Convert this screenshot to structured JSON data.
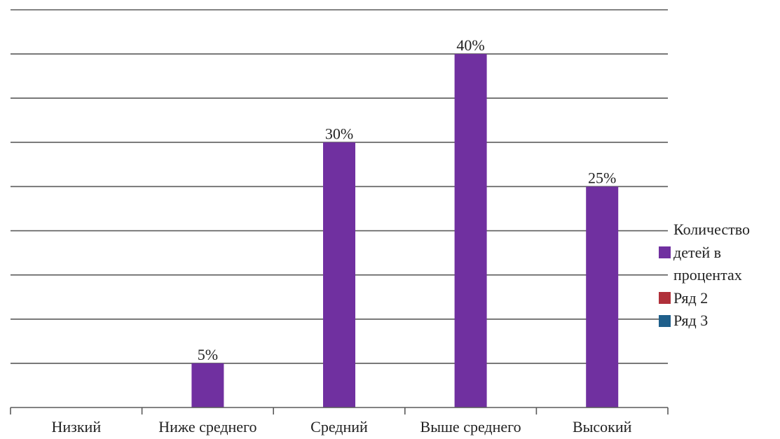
{
  "chart_data": {
    "type": "bar",
    "categories": [
      "Низкий",
      "Ниже среднего",
      "Средний",
      "Выше среднего",
      "Высокий"
    ],
    "series": [
      {
        "name": "Количество детей в процентах",
        "values": [
          0,
          5,
          30,
          40,
          25
        ],
        "labels": [
          "",
          "5%",
          "30%",
          "40%",
          "25%"
        ],
        "color": "#7030a0"
      },
      {
        "name": "Ряд 2",
        "values": [
          0,
          0,
          0,
          0,
          0
        ],
        "color": "#b0303a"
      },
      {
        "name": "Ряд 3",
        "values": [
          0,
          0,
          0,
          0,
          0
        ],
        "color": "#1f5f8b"
      }
    ],
    "ylim": [
      0,
      45
    ],
    "ytick_step": 5,
    "grid": true,
    "legend_position": "right",
    "title": "",
    "xlabel": "",
    "ylabel": ""
  },
  "legend": {
    "items": [
      {
        "label": "Количество детей в процентах",
        "color": "#7030a0"
      },
      {
        "label": "Ряд 2",
        "color": "#b0303a"
      },
      {
        "label": "Ряд 3",
        "color": "#1f5f8b"
      }
    ]
  }
}
